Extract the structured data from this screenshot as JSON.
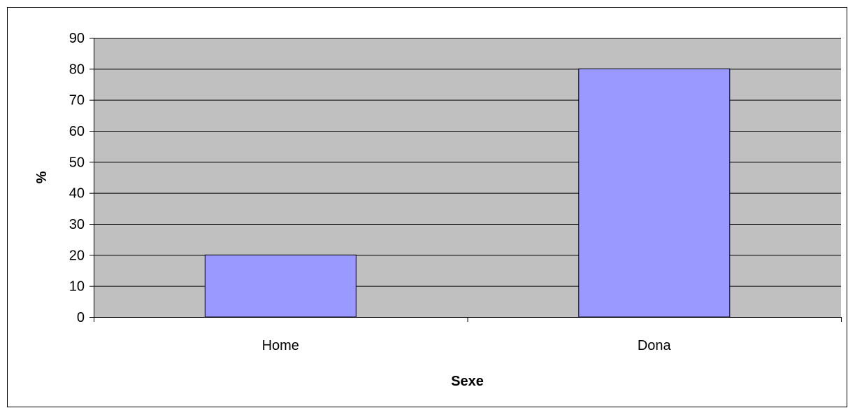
{
  "chart_data": {
    "type": "bar",
    "categories": [
      "Home",
      "Dona"
    ],
    "values": [
      20,
      80
    ],
    "xlabel": "Sexe",
    "ylabel": "%",
    "ylim": [
      0,
      90
    ],
    "yticks": [
      0,
      10,
      20,
      30,
      40,
      50,
      60,
      70,
      80,
      90
    ],
    "grid": true,
    "legend": "none",
    "colors": {
      "plot_background": "#C0C0C0",
      "bar_fill": "#9999FF",
      "bar_stroke": "#000000",
      "gridline": "#000000"
    }
  }
}
